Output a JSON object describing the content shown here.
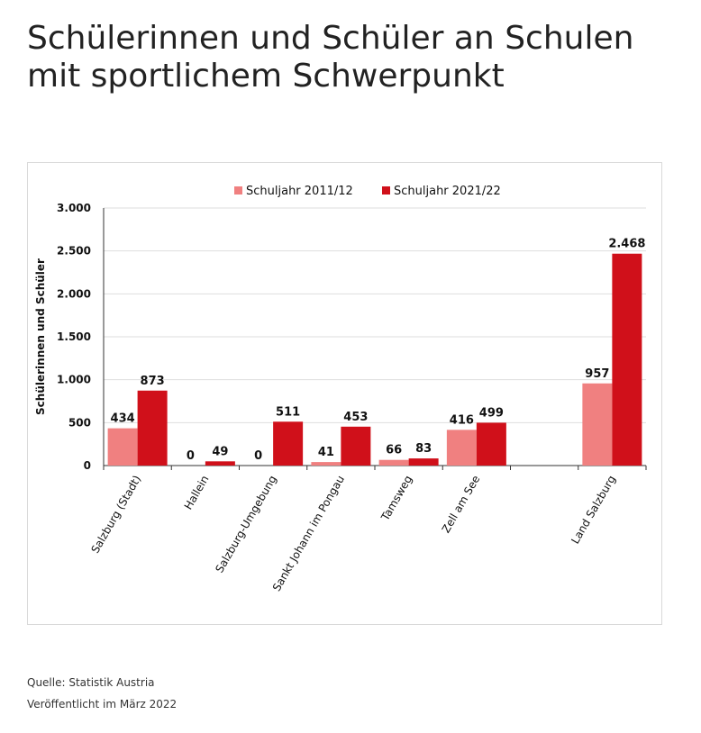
{
  "header": {
    "title_line1": "Schülerinnen und Schüler an Schulen",
    "title_line2": "mit sportlichem Schwerpunkt"
  },
  "footer": {
    "source": "Quelle: Statistik Austria",
    "published": "Veröffentlicht im März 2022"
  },
  "chart_data": {
    "type": "bar",
    "title": "",
    "xlabel": "",
    "ylabel": "Schülerinnen und Schüler",
    "ylim": [
      0,
      3000
    ],
    "yticks": [
      0,
      500,
      1000,
      1500,
      2000,
      2500,
      3000
    ],
    "ytick_labels": [
      "0",
      "500",
      "1.000",
      "1.500",
      "2.000",
      "2.500",
      "3.000"
    ],
    "categories": [
      "Salzburg (Stadt)",
      "Hallein",
      "Salzburg-Umgebung",
      "Sankt Johann im Pongau",
      "Tamsweg",
      "Zell am See",
      "",
      "Land Salzburg"
    ],
    "series": [
      {
        "name": "Schuljahr 2011/12",
        "color": "#f08080",
        "values": [
          434,
          0,
          0,
          41,
          66,
          416,
          null,
          957
        ],
        "labels": [
          "434",
          "0",
          "0",
          "41",
          "66",
          "416",
          "",
          "957"
        ]
      },
      {
        "name": "Schuljahr 2021/22",
        "color": "#d0101a",
        "values": [
          873,
          49,
          511,
          453,
          83,
          499,
          null,
          2468
        ],
        "labels": [
          "873",
          "49",
          "511",
          "453",
          "83",
          "499",
          "",
          "2.468"
        ]
      }
    ],
    "legend_position": "top-center",
    "grid": true
  }
}
